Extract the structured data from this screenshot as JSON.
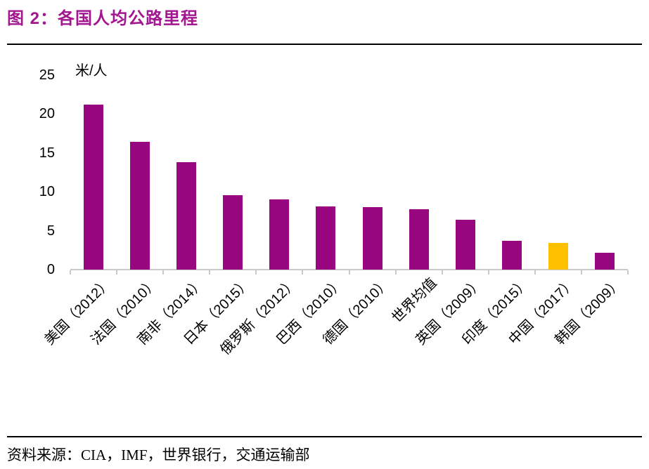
{
  "page": {
    "title": "图 2：各国人均公路里程",
    "source": "资料来源：CIA，IMF，世界银行，交通运输部"
  },
  "colors": {
    "bar_primary": "#98077F",
    "bar_highlight": "#FFC000",
    "title_text": "#A21690",
    "axis_line": "#C9C9C9",
    "rule_line": "#000000"
  },
  "chart_data": {
    "type": "bar",
    "title": "各国人均公路里程",
    "unit_label": "米/人",
    "ylabel": "米/人",
    "xlabel": "",
    "ylim": [
      0,
      25
    ],
    "yticks": [
      0,
      5,
      10,
      15,
      20,
      25
    ],
    "grid": false,
    "legend": "none",
    "categories": [
      "美国（2012）",
      "法国（2010）",
      "南非（2014）",
      "日本（2015）",
      "俄罗斯（2012）",
      "巴西（2010）",
      "德国（2010）",
      "世界均值",
      "英国（2009）",
      "印度（2015）",
      "中国（2017）",
      "韩国（2009）"
    ],
    "values": [
      21.2,
      16.4,
      13.8,
      9.6,
      9.0,
      8.1,
      8.0,
      7.8,
      6.4,
      3.7,
      3.4,
      2.2
    ],
    "highlight_index": 10,
    "highlight_category": "中国（2017）"
  }
}
